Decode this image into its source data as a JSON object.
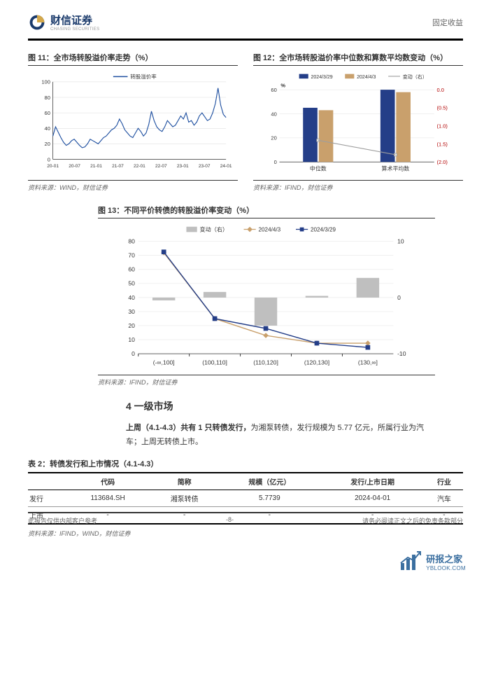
{
  "header": {
    "company_ch": "财信证券",
    "company_en": "CHASING SECURITIES",
    "category": "固定收益"
  },
  "fig11": {
    "title": "图 11：全市场转股溢价率走势（%）",
    "legend": "转股溢价率",
    "xlabels": [
      "20-01",
      "20-07",
      "21-01",
      "21-07",
      "22-01",
      "22-07",
      "23-01",
      "23-07",
      "24-01"
    ],
    "ylim": [
      0,
      100
    ],
    "ytick_step": 20,
    "line_color": "#1e4fa0",
    "line_width": 1.2,
    "grid_color": "#d7d7d7",
    "data": [
      30,
      42,
      35,
      28,
      22,
      18,
      20,
      24,
      26,
      22,
      18,
      15,
      16,
      20,
      26,
      24,
      22,
      20,
      24,
      28,
      30,
      34,
      38,
      40,
      44,
      52,
      46,
      38,
      34,
      30,
      28,
      34,
      40,
      36,
      30,
      34,
      45,
      62,
      50,
      42,
      38,
      36,
      42,
      50,
      46,
      42,
      44,
      50,
      56,
      52,
      60,
      48,
      50,
      44,
      48,
      56,
      60,
      55,
      50,
      52,
      60,
      72,
      92,
      70,
      58,
      54
    ],
    "source": "资料来源：WIND，财信证券"
  },
  "fig12": {
    "title": "图 12：全市场转股溢价率中位数和算数平均数变动（%）",
    "legend": {
      "a": "2024/3/29",
      "b": "2024/4/3",
      "c": "变动（右）"
    },
    "ylabel": "%",
    "categories": [
      "中位数",
      "算术平均数"
    ],
    "a_values": [
      45,
      60
    ],
    "b_values": [
      43,
      58
    ],
    "change_values": [
      -1.4,
      -1.8
    ],
    "a_color": "#243e88",
    "b_color": "#c9a06c",
    "line_color": "#9e9e9e",
    "ylim": [
      0,
      60
    ],
    "ytick_step": 20,
    "ylim2": [
      -2,
      0
    ],
    "ytick2_step": 0.5,
    "ytick2_color": "#b20000",
    "grid_color": "#e0e0e0",
    "source": "资料来源：IFIND，财信证券"
  },
  "fig13": {
    "title": "图 13：不同平价转债的转股溢价率变动（%）",
    "legend": {
      "bar": "变动（右）",
      "line_a": "2024/4/3",
      "line_b": "2024/3/29"
    },
    "categories": [
      "(-∞,100]",
      "(100,110]",
      "(110,120]",
      "(120,130]",
      "(130,∞]"
    ],
    "bar_values": [
      -0.5,
      1.0,
      -5.0,
      0.3,
      3.5
    ],
    "bar_color": "#bfbfbf",
    "line_a_values": [
      72,
      25,
      13,
      7.5,
      7.5
    ],
    "line_a_color": "#c9a06c",
    "line_b_values": [
      72.5,
      25,
      18,
      7.5,
      4.5
    ],
    "line_b_color": "#243e88",
    "ylim": [
      0,
      80
    ],
    "ytick_step": 10,
    "ylim2": [
      -10,
      10
    ],
    "ytick2_step": 10,
    "grid_color": "#e0e0e0",
    "source": "资料来源：IFIND，财信证券"
  },
  "section4": {
    "heading": "4 一级市场",
    "para": {
      "p1": "上周（4.1-4.3）共有 1 只转债发行，",
      "p2": "为湘泵转债，发行规模为 5.77 亿元，所属行业为汽车；上周无转债上市。"
    }
  },
  "table2": {
    "title": "表 2：转债发行和上市情况（4.1-4.3）",
    "cols": [
      "",
      "代码",
      "简称",
      "规模（亿元）",
      "发行/上市日期",
      "行业"
    ],
    "rows": [
      [
        "发行",
        "113684.SH",
        "湘泵转债",
        "5.7739",
        "2024-04-01",
        "汽车"
      ],
      [
        "上市",
        "-",
        "-",
        "-",
        "-",
        "-"
      ]
    ],
    "source": "资料来源：IFIND，WIND，财信证券"
  },
  "footer": {
    "left": "此报告仅供内部客户参考",
    "center": "-8-",
    "right": "请务必阅读正文之后的免责条款部分"
  },
  "watermark": {
    "ch": "研报之家",
    "url": "YBLOOK.COM"
  }
}
